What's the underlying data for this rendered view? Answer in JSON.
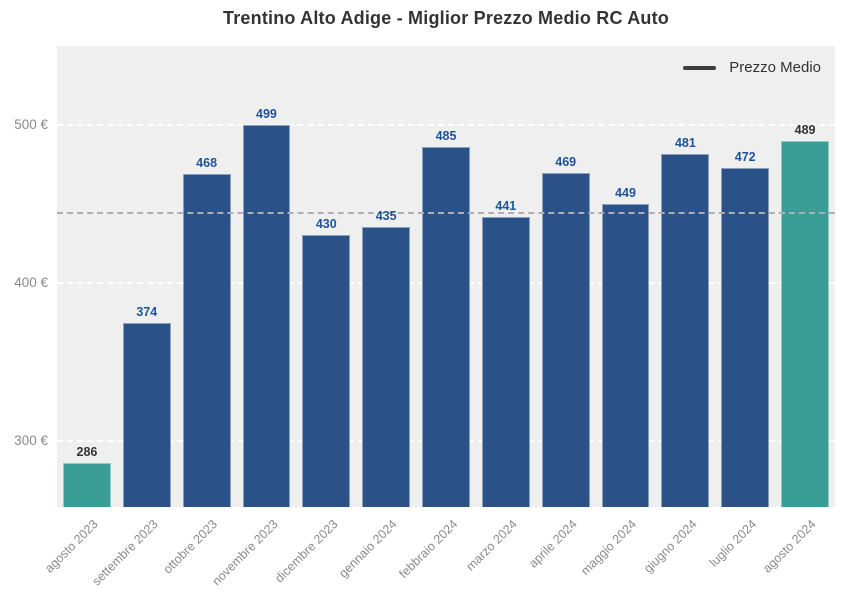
{
  "chart_data": {
    "type": "bar",
    "title": "Trentino Alto Adige - Miglior Prezzo Medio RC Auto",
    "categories": [
      "agosto 2023",
      "settembre 2023",
      "ottobre 2023",
      "novembre 2023",
      "dicembre 2023",
      "gennaio 2024",
      "febbraio 2024",
      "marzo 2024",
      "aprile 2024",
      "maggio 2024",
      "giugno 2024",
      "luglio 2024",
      "agosto 2024"
    ],
    "values": [
      286,
      374,
      468,
      499,
      430,
      435,
      485,
      441,
      469,
      449,
      481,
      472,
      489
    ],
    "series": [
      {
        "name": "Prezzo Medio",
        "values": [
          286,
          374,
          468,
          499,
          430,
          435,
          485,
          441,
          469,
          449,
          481,
          472,
          489
        ]
      }
    ],
    "xlabel": "",
    "ylabel": "",
    "y_ticks": [
      {
        "value": 300,
        "label": "300 €"
      },
      {
        "value": 400,
        "label": "400 €"
      },
      {
        "value": 500,
        "label": "500 €"
      }
    ],
    "ylim": [
      258,
      549
    ],
    "average_line_value": 444.5,
    "highlight_indices": [
      0,
      12
    ],
    "legend": {
      "label": "Prezzo Medio",
      "position": "top-right"
    },
    "grid": {
      "horizontal": true,
      "style": "dashed",
      "color": "#ffffff"
    },
    "colors": {
      "bar": "#2a5288",
      "bar_highlight": "#3a9e96",
      "value_label": "#1f5499",
      "value_label_highlight": "#333333",
      "average_line": "#aeaeb4",
      "plot_background": "#efefef",
      "axis_text": "#8a8a8a",
      "title": "#333333",
      "legend_line": "#3d3d3d"
    }
  }
}
